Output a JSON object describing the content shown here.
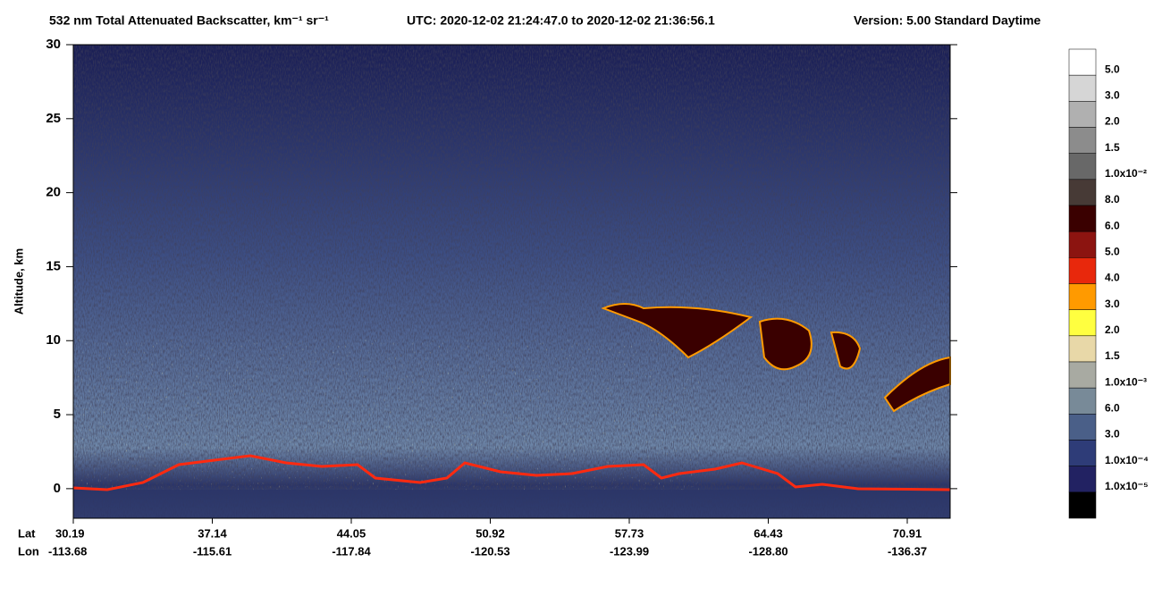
{
  "chart_data": {
    "type": "heatmap",
    "title": "532 nm Total Attenuated Backscatter, km⁻¹ sr⁻¹",
    "time_range": "UTC:  2020-12-02 21:24:47.0  to  2020-12-02 21:36:56.1",
    "version": "Version: 5.00  Standard  Daytime",
    "y_label": "Altitude, km",
    "ylim": [
      -2,
      30
    ],
    "yticks": [
      0,
      5,
      10,
      15,
      20,
      25,
      30
    ],
    "x_row_labels": [
      "Lat",
      "Lon"
    ],
    "lat": [
      30.19,
      37.14,
      44.05,
      50.92,
      57.73,
      64.43,
      70.91
    ],
    "lon": [
      -113.68,
      -115.61,
      -117.84,
      -120.53,
      -123.99,
      -128.8,
      -136.37
    ],
    "lon_labels": [
      "-113.68",
      "-115.61",
      "-117.84",
      "-120.53",
      "-123.99",
      "-128.80",
      "-136.37"
    ],
    "colorbar": {
      "colors": [
        "#ffffff",
        "#d6d6d6",
        "#b0b0b0",
        "#8c8c8c",
        "#686868",
        "#473a36",
        "#3a0000",
        "#8c1410",
        "#e8280c",
        "#ff9a00",
        "#ffff40",
        "#e8d8a8",
        "#a8aaa2",
        "#788a98",
        "#4a5f88",
        "#2e3c78",
        "#222262",
        "#000000"
      ],
      "labels": [
        "5.0",
        "3.0",
        "2.0",
        "1.5",
        "1.0x10⁻²",
        "8.0",
        "6.0",
        "5.0",
        "4.0",
        "3.0",
        "2.0",
        "1.5",
        "1.0x10⁻³",
        "6.0",
        "3.0",
        "1.0x10⁻⁴",
        "1.0x10⁻⁵"
      ]
    }
  }
}
